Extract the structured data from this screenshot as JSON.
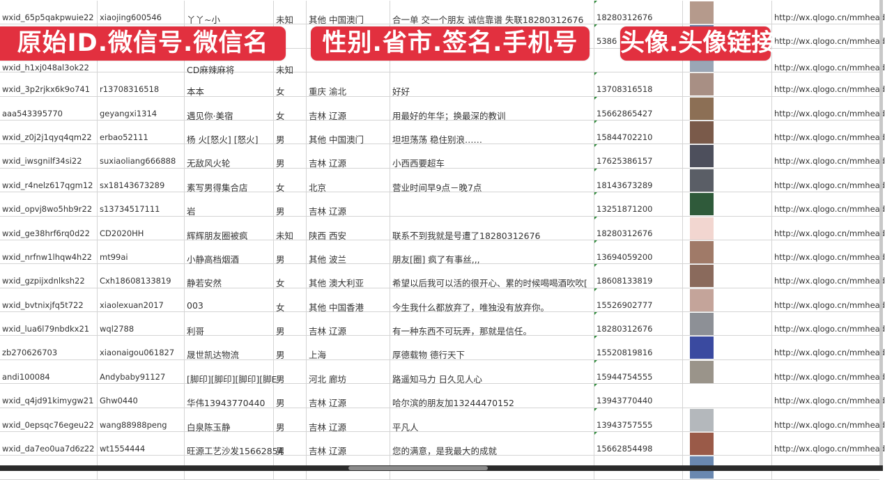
{
  "banners": [
    "原始ID.微信号.微信名",
    "性别.省市.签名.手机号",
    "头像.头像链接"
  ],
  "rows": [
    {
      "id": "wxid_65p5qakpwuie22",
      "wxno": "xiaojing600546",
      "nick": "丫丫~小",
      "gender": "未知",
      "region": "其他 中国澳门",
      "sign": "合一单 交一个朋友 诚信靠谱 失联18280312676",
      "phone": "18280312676",
      "url": "http://wx.qlogo.cn/mmhead",
      "avatar_color": "#b59a8c"
    },
    {
      "id": "",
      "wxno": "",
      "nick": "",
      "gender": "",
      "region": "",
      "sign": "",
      "phone": "5386",
      "url": "http://wx.qlogo.cn/mmhead",
      "avatar_color": "#6b7fa8"
    },
    {
      "id": "wxid_h1xj048al3ok22",
      "wxno": "",
      "nick": "CD麻辣麻将",
      "gender": "未知",
      "region": "",
      "sign": "",
      "phone": "",
      "url": "http://wx.qlogo.cn/mmhead",
      "avatar_color": "#9aa6b6"
    },
    {
      "id": "wxid_3p2rjkx6k9o741",
      "wxno": "r13708316518",
      "nick": "本本",
      "gender": "女",
      "region": "重庆 渝北",
      "sign": "好好",
      "phone": "13708316518",
      "url": "http://wx.qlogo.cn/mmhead",
      "avatar_color": "#a88f84"
    },
    {
      "id": "aaa543395770",
      "wxno": "geyangxi1314",
      "nick": "遇见你·美宿",
      "gender": "女",
      "region": "吉林 辽源",
      "sign": "用最好的年华；换最深的教训",
      "phone": "15662865427",
      "url": "http://wx.qlogo.cn/mmhead",
      "avatar_color": "#8c6f55"
    },
    {
      "id": "wxid_z0j2j1qyq4qm22",
      "wxno": "erbao52111",
      "nick": "杨 火[怒火] [怒火]",
      "gender": "男",
      "region": "其他 中国澳门",
      "sign": "坦坦荡荡 稳住别浪……",
      "phone": "15844702210",
      "url": "http://wx.qlogo.cn/mmhead",
      "avatar_color": "#7a5a4a"
    },
    {
      "id": "wxid_iwsgnilf34si22",
      "wxno": "suxiaoliang666888",
      "nick": "无敌风火轮",
      "gender": "男",
      "region": "吉林 辽源",
      "sign": "小西西要超车",
      "phone": "17625386157",
      "url": "http://wx.qlogo.cn/mmhead",
      "avatar_color": "#4d4f5c"
    },
    {
      "id": "wxid_r4nelz617qgm12",
      "wxno": "sx18143673289",
      "nick": "素写男得集合店",
      "gender": "女",
      "region": "北京",
      "sign": "营业时间早9点－晚7点",
      "phone": "18143673289",
      "url": "http://wx.qlogo.cn/mmhead",
      "avatar_color": "#5a5e66"
    },
    {
      "id": "wxid_opvj8wo5hb9r22",
      "wxno": "s13734517111",
      "nick": "岩",
      "gender": "男",
      "region": "吉林 辽源",
      "sign": "",
      "phone": "13251871200",
      "url": "http://wx.qlogo.cn/mmhead",
      "avatar_color": "#2f5a3a"
    },
    {
      "id": "wxid_ge38hrf6rq0d22",
      "wxno": "CD2020HH",
      "nick": "辉辉朋友圈被疯",
      "gender": "未知",
      "region": "陕西 西安",
      "sign": "联系不到我就是号遭了18280312676",
      "phone": "18280312676",
      "url": "http://wx.qlogo.cn/mmhead",
      "avatar_color": "#f2d6d0"
    },
    {
      "id": "wxid_nrfnw1lhqw4h22",
      "wxno": "mt99ai",
      "nick": "小静高档烟酒",
      "gender": "男",
      "region": "其他 波兰",
      "sign": "朋友[圈] 疯了有事丝,,,",
      "phone": "13694059200",
      "url": "http://wx.qlogo.cn/mmhead",
      "avatar_color": "#a07a68"
    },
    {
      "id": "wxid_gzpijxdnlksh22",
      "wxno": "Cxh18608133819",
      "nick": "静若安然",
      "gender": "女",
      "region": "其他 澳大利亚",
      "sign": "希望以后我可以活的很开心、累的时候喝喝酒吹吹[",
      "phone": "18608133819",
      "url": "http://wx.qlogo.cn/mmhead",
      "avatar_color": "#8a6a5c"
    },
    {
      "id": "wxid_bvtnixjfq5t722",
      "wxno": "xiaolexuan2017",
      "nick": "003",
      "gender": "女",
      "region": "其他 中国香港",
      "sign": "今生我什么都放弃了，唯独没有放弃你。",
      "phone": "15526902777",
      "url": "http://wx.qlogo.cn/mmhead",
      "avatar_color": "#c4a49a"
    },
    {
      "id": "wxid_lua6l79nbdkx21",
      "wxno": "wql2788",
      "nick": "利哥",
      "gender": "男",
      "region": "吉林 辽源",
      "sign": "有一种东西不可玩弄，那就是信任。",
      "phone": "18280312676",
      "url": "http://wx.qlogo.cn/mmhead",
      "avatar_color": "#8d9096"
    },
    {
      "id": "zb270626703",
      "wxno": "xiaonaigou061827",
      "nick": "晟世凯达物流",
      "gender": "男",
      "region": "上海",
      "sign": "厚德载物 德行天下",
      "phone": "15520819816",
      "url": "http://wx.qlogo.cn/mmhead",
      "avatar_color": "#3a4aa0"
    },
    {
      "id": "andi100084",
      "wxno": "Andybaby91127",
      "nick": "[脚印][脚印][脚印][脚E",
      "gender": "男",
      "region": "河北 廊坊",
      "sign": "路遥知马力 日久见人心",
      "phone": "15944754555",
      "url": "http://wx.qlogo.cn/mmhead",
      "avatar_color": "#9a948a"
    },
    {
      "id": "wxid_q4jd91kimygw21",
      "wxno": "Ghw0440",
      "nick": "华伟13943770440",
      "gender": "男",
      "region": "吉林 辽源",
      "sign": "哈尔滨的朋友加13244470152",
      "phone": "13943770440",
      "url": "http://wx.qlogo.cn/mmhead",
      "avatar_color": "#ffffff"
    },
    {
      "id": "wxid_0epsqc76egeu22",
      "wxno": "wang88988peng",
      "nick": "白泉陈玉静",
      "gender": "男",
      "region": "吉林 辽源",
      "sign": "平凡人",
      "phone": "13943757555",
      "url": "http://wx.qlogo.cn/mmhead",
      "avatar_color": "#b4b8bc"
    },
    {
      "id": "wxid_da7eo0ua7d6z22",
      "wxno": "wt1554444",
      "nick": "旺源工艺沙发15662854",
      "gender": "男",
      "region": "吉林 辽源",
      "sign": "您的满意，是我最大的成就",
      "phone": "15662854498",
      "url": "http://wx.qlogo.cn/mmhead",
      "avatar_color": "#9a5a48"
    },
    {
      "id": "",
      "wxno": "",
      "nick": "",
      "gender": "",
      "region": "",
      "sign": "",
      "phone": "",
      "url": "",
      "avatar_color": "#6a88b0"
    }
  ]
}
